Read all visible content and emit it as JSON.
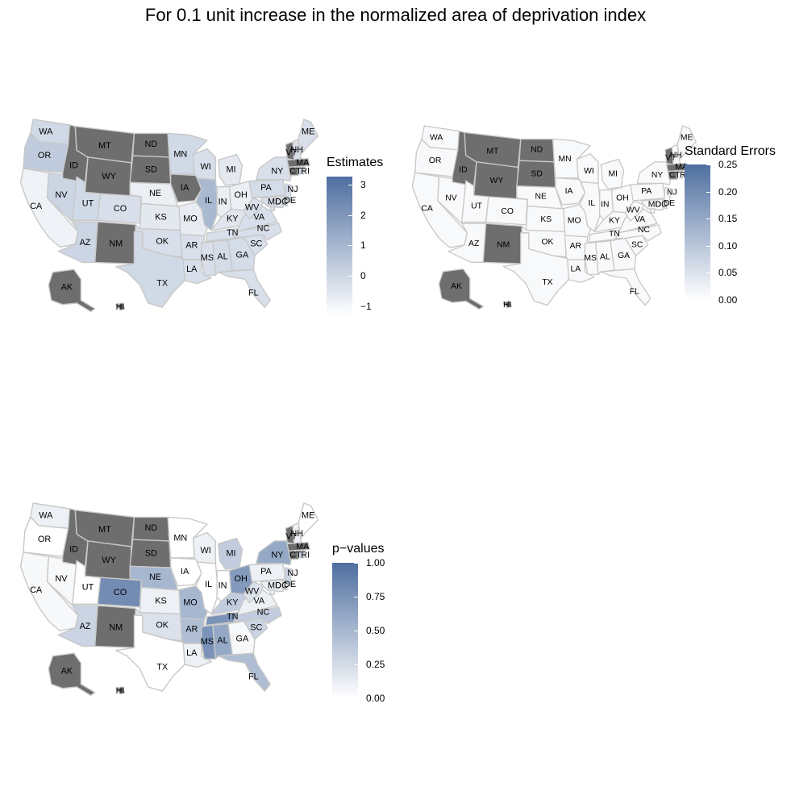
{
  "title": "For 0.1 unit increase in the normalized area of deprivation index",
  "colors": {
    "low": "#ffffff",
    "high": "#4f6fa0",
    "missing": "#6e6e6e",
    "border": "#c8c8c8"
  },
  "chart_data": [
    {
      "type": "choropleth",
      "legend_title": "Estimates",
      "legend_ticks": [
        "3",
        "2",
        "1",
        "0",
        "−1"
      ],
      "range": [
        -1,
        3.5
      ],
      "missing_states": [
        "MT",
        "ND",
        "SD",
        "WY",
        "ID",
        "NM",
        "IA",
        "AK",
        "HI",
        "VT",
        "MA",
        "CT"
      ],
      "values": {
        "WA": 0.2,
        "OR": 0.6,
        "CA": -0.6,
        "NV": 0.3,
        "UT": 0.2,
        "AZ": 0.3,
        "CO": 0.0,
        "MN": 0.2,
        "WI": 0.0,
        "IL": 1.2,
        "MI": -0.3,
        "IN": -0.5,
        "OH": -0.5,
        "NE": -0.5,
        "KS": -0.3,
        "MO": -0.4,
        "OK": 0.0,
        "TX": 0.2,
        "AR": 0.0,
        "LA": 0.0,
        "MS": 0.0,
        "AL": 0.1,
        "TN": 0.0,
        "KY": -0.2,
        "GA": 0.1,
        "FL": 0.0,
        "SC": 0.0,
        "NC": 0.0,
        "VA": 0.0,
        "WV": 0.0,
        "PA": 0.1,
        "NY": 0.0,
        "NJ": 0.1,
        "ME": 0.0,
        "NH": 0.0,
        "RI": 0.2,
        "DE": 0.0,
        "MD": 0.0,
        "DC": 0.0
      }
    },
    {
      "type": "choropleth",
      "legend_title": "Standard Errors",
      "legend_ticks": [
        "0.25",
        "0.20",
        "0.15",
        "0.10",
        "0.05",
        "0.00"
      ],
      "range": [
        0,
        0.25
      ],
      "missing_states": [
        "MT",
        "ND",
        "SD",
        "WY",
        "ID",
        "NM",
        "AK",
        "HI",
        "VT",
        "MA",
        "CT"
      ],
      "values": {
        "WA": 0.01,
        "OR": 0.01,
        "CA": 0.01,
        "NV": 0.01,
        "UT": 0.01,
        "AZ": 0.01,
        "CO": 0.01,
        "MN": 0.01,
        "WI": 0.01,
        "IL": 0.01,
        "MI": 0.01,
        "IN": 0.01,
        "OH": 0.01,
        "NE": 0.01,
        "KS": 0.01,
        "MO": 0.01,
        "OK": 0.01,
        "TX": 0.01,
        "AR": 0.01,
        "LA": 0.01,
        "MS": 0.01,
        "AL": 0.01,
        "TN": 0.01,
        "KY": 0.01,
        "GA": 0.01,
        "FL": 0.01,
        "SC": 0.01,
        "NC": 0.01,
        "VA": 0.01,
        "WV": 0.01,
        "PA": 0.01,
        "NY": 0.01,
        "NJ": 0.01,
        "ME": 0.01,
        "NH": 0.01,
        "RI": 0.01,
        "DE": 0.01,
        "MD": 0.01,
        "DC": 0.01,
        "IA": 0.01
      }
    },
    {
      "type": "choropleth",
      "legend_title": "p−values",
      "legend_ticks": [
        "1.00",
        "0.75",
        "0.50",
        "0.25",
        "0.00"
      ],
      "range": [
        0,
        1
      ],
      "missing_states": [
        "MT",
        "ND",
        "SD",
        "WY",
        "ID",
        "NM",
        "AK",
        "HI",
        "VT",
        "MA",
        "CT"
      ],
      "values": {
        "WA": 0.1,
        "OR": 0.0,
        "CA": 0.05,
        "NV": 0.05,
        "UT": 0.0,
        "AZ": 0.3,
        "CO": 0.8,
        "MN": 0.0,
        "WI": 0.1,
        "IL": 0.0,
        "MI": 0.35,
        "IN": 0.0,
        "OH": 0.7,
        "NE": 0.5,
        "KS": 0.1,
        "MO": 0.5,
        "OK": 0.2,
        "TX": 0.0,
        "AR": 0.45,
        "LA": 0.1,
        "MS": 0.75,
        "AL": 0.6,
        "TN": 0.75,
        "KY": 0.35,
        "GA": 0.05,
        "FL": 0.45,
        "SC": 0.3,
        "NC": 0.35,
        "VA": 0.1,
        "WV": 0.2,
        "PA": 0.1,
        "NY": 0.6,
        "NJ": 0.3,
        "ME": 0.0,
        "NH": 0.1,
        "RI": 0.3,
        "DE": 0.1,
        "MD": 0.1,
        "DC": 0.1,
        "IA": 0.0
      }
    }
  ]
}
